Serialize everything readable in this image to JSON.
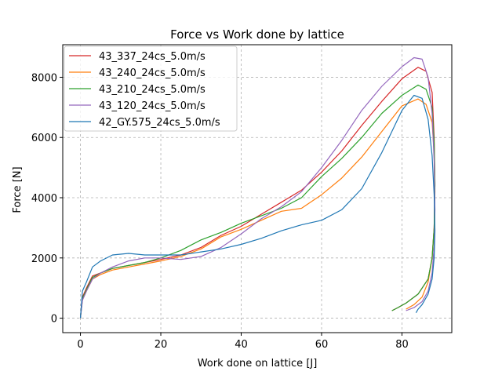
{
  "chart_data": {
    "type": "line",
    "title": "Force vs Work done by lattice",
    "xlabel": "Work done on lattice [J]",
    "ylabel": "Force [N]",
    "xlim": [
      -4.4,
      92.4
    ],
    "ylim": [
      -480,
      9080
    ],
    "xticks": [
      0,
      20,
      40,
      60,
      80
    ],
    "yticks": [
      0,
      2000,
      4000,
      6000,
      8000
    ],
    "xtick_labels": [
      "0",
      "20",
      "40",
      "60",
      "80"
    ],
    "ytick_labels": [
      "0",
      "2000",
      "4000",
      "6000",
      "8000"
    ],
    "grid": true,
    "legend_position": "upper-left",
    "series": [
      {
        "name": "43_337_24cs_5.0m/s",
        "color": "#d62728",
        "x": [
          0,
          0.5,
          1.5,
          3,
          5,
          8,
          12,
          16,
          20,
          25,
          30,
          35,
          40,
          45,
          50,
          55,
          60,
          65,
          70,
          75,
          80,
          84,
          86,
          87.5,
          88,
          88.2,
          88,
          87.5,
          86.5,
          84,
          81,
          79,
          77.5
        ],
        "y": [
          0,
          700,
          1000,
          1400,
          1500,
          1650,
          1750,
          1850,
          1950,
          2100,
          2350,
          2750,
          3050,
          3450,
          3850,
          4250,
          4850,
          5550,
          6400,
          7200,
          7950,
          8330,
          8200,
          7500,
          6000,
          4500,
          3000,
          2000,
          1300,
          800,
          500,
          350,
          250
        ]
      },
      {
        "name": "43_240_24cs_5.0m/s",
        "color": "#ff7f0e",
        "x": [
          0,
          0.5,
          1.5,
          3,
          5,
          8,
          12,
          16,
          20,
          25,
          30,
          35,
          40,
          45,
          50,
          55,
          60,
          65,
          70,
          75,
          80,
          84,
          86,
          87.5,
          88,
          88.2,
          88,
          87.5,
          86.5,
          85,
          83,
          81
        ],
        "y": [
          0,
          600,
          900,
          1300,
          1450,
          1600,
          1700,
          1800,
          1900,
          2050,
          2300,
          2700,
          2950,
          3250,
          3550,
          3650,
          4100,
          4650,
          5350,
          6200,
          7050,
          7280,
          7100,
          6500,
          5500,
          4200,
          3000,
          2000,
          1200,
          700,
          450,
          300
        ]
      },
      {
        "name": "43_210_24cs_5.0m/s",
        "color": "#2ca02c",
        "x": [
          0,
          0.5,
          1.5,
          3,
          5,
          8,
          12,
          16,
          20,
          25,
          30,
          35,
          40,
          45,
          50,
          55,
          60,
          65,
          70,
          75,
          80,
          84,
          86,
          87.5,
          88,
          88.2,
          88,
          87.5,
          86.5,
          84,
          81,
          79,
          77.5
        ],
        "y": [
          0,
          650,
          950,
          1350,
          1500,
          1650,
          1750,
          1850,
          2000,
          2250,
          2600,
          2850,
          3150,
          3400,
          3650,
          4000,
          4700,
          5300,
          6000,
          6800,
          7400,
          7740,
          7600,
          7000,
          5800,
          4400,
          3000,
          2000,
          1300,
          800,
          500,
          350,
          250
        ]
      },
      {
        "name": "43_120_24cs_5.0m/s",
        "color": "#9467bd",
        "x": [
          0,
          0.5,
          1.5,
          3,
          5,
          8,
          12,
          16,
          20,
          25,
          30,
          35,
          40,
          45,
          50,
          55,
          60,
          65,
          70,
          75,
          80,
          83,
          85,
          86.5,
          87.5,
          88,
          88.2,
          88,
          87.5,
          86.5,
          85,
          83,
          81
        ],
        "y": [
          0,
          600,
          900,
          1300,
          1500,
          1700,
          1900,
          2000,
          2000,
          1950,
          2050,
          2350,
          2800,
          3300,
          3700,
          4200,
          5000,
          5900,
          6900,
          7700,
          8350,
          8650,
          8600,
          8000,
          6800,
          5200,
          3600,
          2400,
          1500,
          900,
          550,
          350,
          250
        ]
      },
      {
        "name": "42_GY.575_24cs_5.0m/s",
        "color": "#1f77b4",
        "x": [
          0,
          0.5,
          1.5,
          3,
          5,
          8,
          12,
          16,
          20,
          25,
          30,
          35,
          40,
          45,
          50,
          55,
          60,
          65,
          70,
          75,
          80,
          83,
          85,
          86.5,
          87.5,
          88,
          88.2,
          88,
          87.5,
          86.5,
          85,
          84,
          83.5
        ],
        "y": [
          0,
          900,
          1200,
          1700,
          1900,
          2100,
          2150,
          2100,
          2100,
          2100,
          2200,
          2300,
          2450,
          2650,
          2900,
          3100,
          3250,
          3600,
          4300,
          5500,
          6900,
          7400,
          7300,
          6600,
          5400,
          4100,
          2900,
          2000,
          1300,
          800,
          450,
          300,
          180
        ]
      }
    ]
  }
}
